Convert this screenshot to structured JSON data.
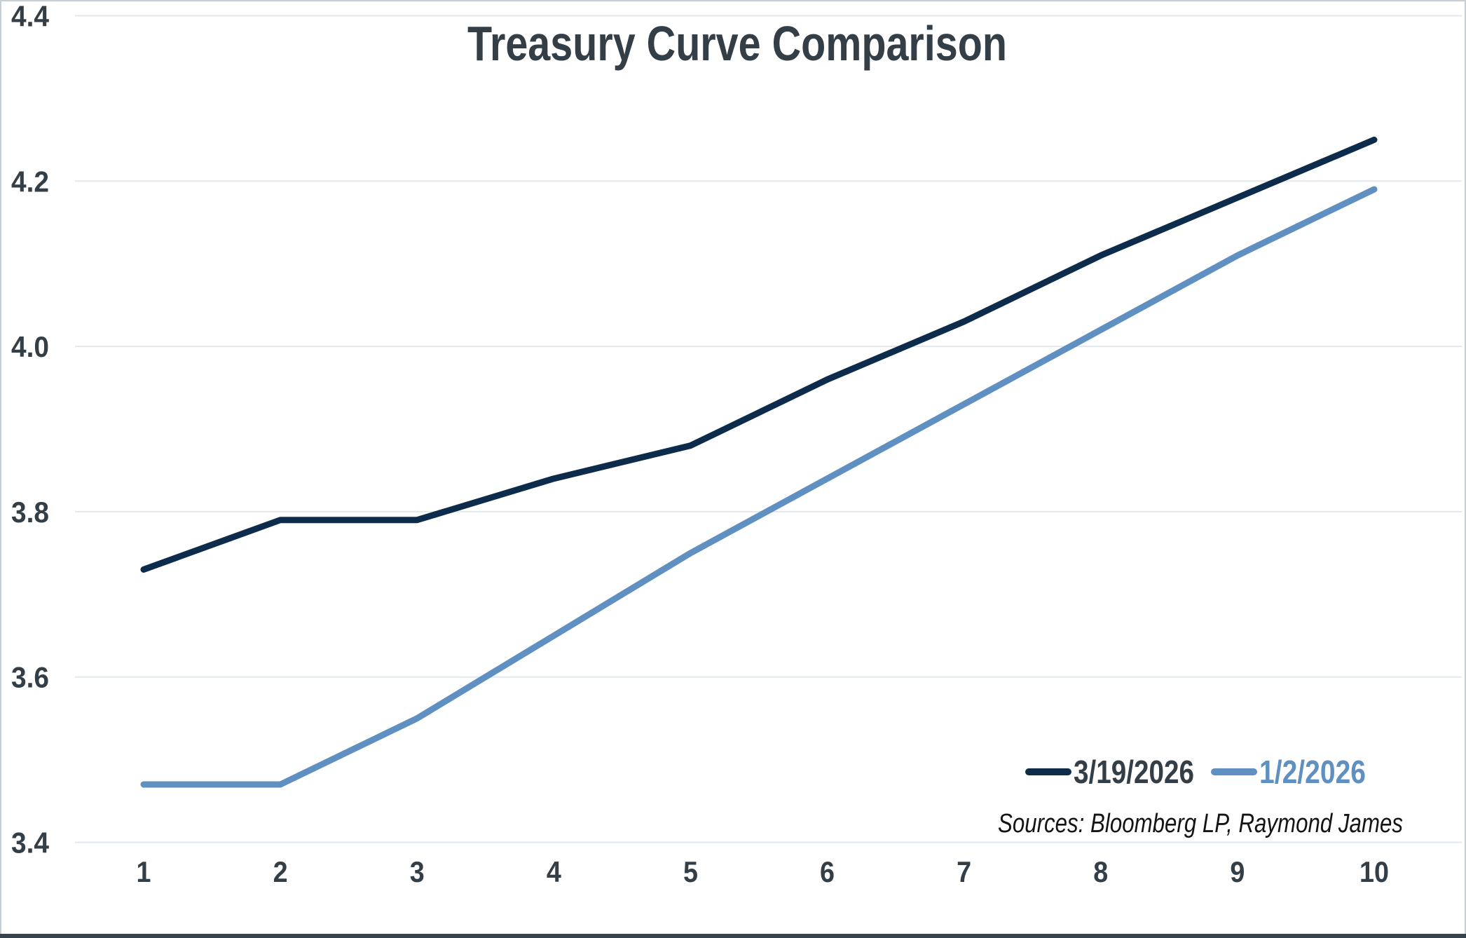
{
  "title": "Treasury Curve Comparison",
  "source_note": "Sources: Bloomberg LP, Raymond James",
  "colors": {
    "series1": "#0d2b4b",
    "series2": "#5f90c1",
    "grid": "#e2e8ec",
    "axis_text": "#333e47",
    "title_text": "#333e47",
    "source_text": "#141414",
    "outer_border": "#c6cfd5",
    "bottom_border": "#39434b",
    "background": "#ffffff"
  },
  "legend": [
    {
      "label": "3/19/2026",
      "color": "#0d2b4b"
    },
    {
      "label": "1/2/2026",
      "color": "#5f90c1"
    }
  ],
  "y_axis": {
    "tick_labels": [
      "3.4",
      "3.6",
      "3.8",
      "4.0",
      "4.2",
      "4.4"
    ]
  },
  "x_axis": {
    "tick_labels": [
      "1",
      "2",
      "3",
      "4",
      "5",
      "6",
      "7",
      "8",
      "9",
      "10"
    ]
  },
  "chart_data": {
    "type": "line",
    "title": "Treasury Curve Comparison",
    "xlabel": "",
    "ylabel": "",
    "x": [
      1,
      2,
      3,
      4,
      5,
      6,
      7,
      8,
      9,
      10
    ],
    "series": [
      {
        "name": "3/19/2026",
        "color": "#0d2b4b",
        "values": [
          3.73,
          3.79,
          3.79,
          3.84,
          3.88,
          3.96,
          4.03,
          4.11,
          4.18,
          4.25
        ]
      },
      {
        "name": "1/2/2026",
        "color": "#5f90c1",
        "values": [
          3.47,
          3.47,
          3.55,
          3.65,
          3.75,
          3.84,
          3.93,
          4.02,
          4.11,
          4.19
        ]
      }
    ],
    "xlim": [
      1,
      10
    ],
    "ylim": [
      3.4,
      4.4
    ],
    "ytick_step": 0.2,
    "grid": "horizontal",
    "legend_position": "bottom-right",
    "annotations": [
      "Sources: Bloomberg LP, Raymond James"
    ]
  }
}
